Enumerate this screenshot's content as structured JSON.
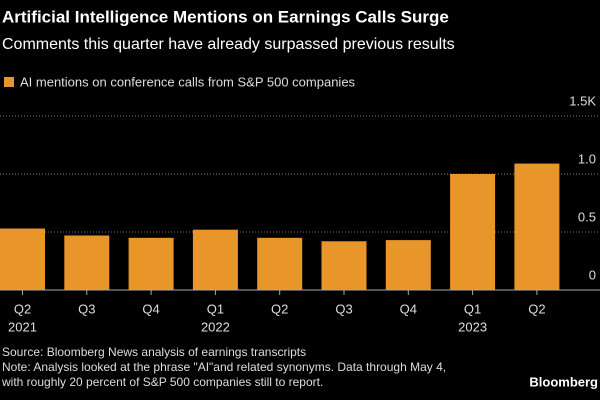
{
  "chart_data": {
    "type": "bar",
    "title": "Artificial Intelligence Mentions on Earnings Calls Surge",
    "subtitle": "Comments this quarter have already surpassed previous results",
    "categories": [
      "Q2",
      "Q3",
      "Q4",
      "Q1",
      "Q2",
      "Q3",
      "Q4",
      "Q1",
      "Q2"
    ],
    "year_labels": [
      "2021",
      null,
      null,
      "2022",
      null,
      null,
      null,
      "2023",
      null
    ],
    "series": [
      {
        "name": "AI mentions on conference calls from S&P 500 companies",
        "color": "#e8952a",
        "values": [
          0.53,
          0.47,
          0.45,
          0.52,
          0.45,
          0.42,
          0.43,
          1.0,
          1.09
        ]
      }
    ],
    "ylim": [
      0,
      1.5
    ],
    "yticks": [
      0,
      0.5,
      {
        "value": 1,
        "label": "1.0"
      },
      {
        "value": 1.5,
        "label": "1.5K"
      }
    ],
    "grid": true,
    "source": "Source: Bloomberg News analysis of earnings transcripts",
    "note": [
      "Note: Analysis looked at the phrase \"AI\"and related synonyms. Data through May 4,",
      "with roughly 20 percent of S&P 500 companies still to report."
    ],
    "brand": "Bloomberg"
  }
}
